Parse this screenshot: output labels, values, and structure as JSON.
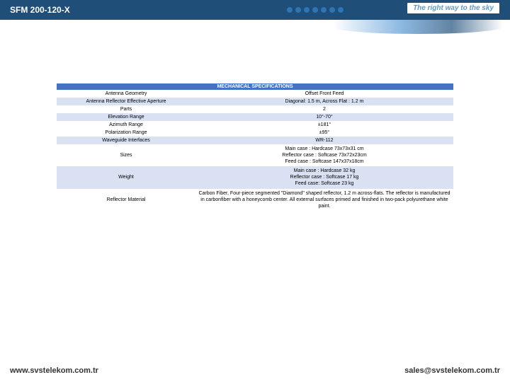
{
  "header": {
    "title": "SFM 200-120-X",
    "banner": "The right way to the sky"
  },
  "table": {
    "section": "MECHANICAL SPECIFICATIONS",
    "rows": [
      {
        "label": "Antenna Geometry",
        "value": "Offset Front Feed",
        "bg": "row-odd"
      },
      {
        "label": "Antenna Reflector Effective Aperture",
        "value": "Diagonal: 1.5 m, Across Flat : 1.2 m",
        "bg": "row-even"
      },
      {
        "label": "Parts",
        "value": "2",
        "bg": "row-odd"
      },
      {
        "label": "Elevation Range",
        "value": "10°-70°",
        "bg": "row-even"
      },
      {
        "label": "Azimuth Range",
        "value": "±181°",
        "bg": "row-odd"
      },
      {
        "label": "Polarization Range",
        "value": "±95°",
        "bg": "row-odd"
      },
      {
        "label": "Waveguide Interfaces",
        "value": "WR-112",
        "bg": "row-even"
      },
      {
        "label": "Sizes",
        "value": "Main case : Hardcase 73x73x31 cm\nReflector case : Softcase 73x72x23cm\nFeed case : Softcase 147x37x18cm",
        "bg": "row-odd",
        "multi": true
      },
      {
        "label": "Weight",
        "value": "Main case : Hardcase 32 kg\nReflector case : Softcase 17 kg\nFeed case: Softcase 23 kg",
        "bg": "row-even",
        "multi": true
      },
      {
        "label": "Reflector Material",
        "value": "Carbon Fiber, Four-piece segmented \"Diamond\" shaped reflector, 1.2 m across-flats. The reflector is manufactured in carbonfiber with a honeycomb center. All external surfaces primed and finished in two-pack polyurethane white paint.",
        "bg": "row-odd",
        "multi": true
      }
    ]
  },
  "footer": {
    "left": "www.svstelekom.com.tr",
    "right": "sales@svstelekom.com.tr"
  },
  "colors": {
    "primary": "#1f4e79",
    "accent": "#4472c4",
    "light": "#5b9bd5"
  }
}
